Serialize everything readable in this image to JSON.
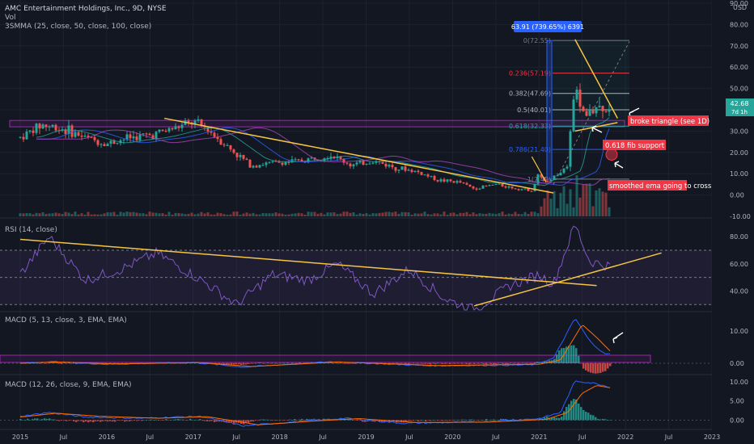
{
  "colors": {
    "background": "#131722",
    "grid": "#1e222d",
    "separator": "#2a2e39",
    "text": "#b2b5be",
    "bull": "#26a69a",
    "bear": "#ef5350",
    "trendline": "#f5c542",
    "rsi_line": "#7e57c2",
    "rsi_band": "#7e57c2",
    "macd_line": "#2962ff",
    "signal_line": "#ff6d00",
    "fib_red": "#f23645",
    "fib_blue": "#2962ff",
    "zone_border": "#9c27b0",
    "annotation_bg": "#f23645"
  },
  "header": {
    "symbol_line": "AMC Entertainment Holdings, Inc., 9D, NYSE",
    "vol_label": "Vol",
    "smma_label": "3SMMA (25, close, 50, close, 100, close)"
  },
  "price_badge": {
    "price": "42.68",
    "countdown": "7d 1h"
  },
  "measure_label": "63.91 (739.65%) 6391",
  "annotations": {
    "broke_triangle": "broke triangle (see 1D)",
    "fib_support": "0.618 fib support",
    "ema_cross": "smoothed ema going to cross"
  },
  "fib_levels": [
    {
      "label": "0(72.55)",
      "value": 72.55,
      "color": "#787b86"
    },
    {
      "label": "0.236(57.19)",
      "value": 57.19,
      "color": "#f23645"
    },
    {
      "label": "0.382(47.69)",
      "value": 47.69,
      "color": "#b2b5be"
    },
    {
      "label": "0.5(40.01)",
      "value": 40.01,
      "color": "#b2b5be"
    },
    {
      "label": "0.618(32.33)",
      "value": 32.33,
      "color": "#26a69a"
    },
    {
      "label": "0.786(21.40)",
      "value": 21.4,
      "color": "#2962ff"
    },
    {
      "label": "1(7.47)",
      "value": 7.47,
      "color": "#787b86"
    }
  ],
  "panes": {
    "rsi_label": "RSI (14, close)",
    "macd1_label": "MACD (5, 13, close, 3, EMA, EMA)",
    "macd2_label": "MACD (12, 26, close, 9, EMA, EMA)"
  },
  "chart_data": {
    "type": "candlestick",
    "title": "AMC Entertainment Holdings, Inc., 9D, NYSE",
    "price_axis": {
      "ticks": [
        "90.00",
        "80.00",
        "70.00",
        "60.00",
        "50.00",
        "40.00",
        "30.00",
        "20.00",
        "10.00",
        "0.00",
        "-10.00"
      ],
      "unit": "USD",
      "ylim": [
        -10,
        90
      ]
    },
    "x_axis": {
      "ticks": [
        "2015",
        "Jul",
        "2016",
        "Jul",
        "2017",
        "Jul",
        "2018",
        "Jul",
        "2019",
        "Jul",
        "2020",
        "Jul",
        "2021",
        "Jul",
        "2022",
        "Jul",
        "2023"
      ],
      "range": [
        "2015-01",
        "2023-02"
      ]
    },
    "price_anchors": [
      [
        "2015-01",
        27
      ],
      [
        "2015-04",
        33
      ],
      [
        "2015-07",
        31
      ],
      [
        "2015-10",
        27
      ],
      [
        "2016-01",
        24
      ],
      [
        "2016-04",
        27
      ],
      [
        "2016-07",
        28
      ],
      [
        "2016-10",
        31
      ],
      [
        "2017-01",
        34
      ],
      [
        "2017-03",
        31
      ],
      [
        "2017-06",
        22
      ],
      [
        "2017-09",
        14
      ],
      [
        "2017-12",
        15
      ],
      [
        "2018-04",
        16
      ],
      [
        "2018-08",
        19
      ],
      [
        "2018-11",
        14
      ],
      [
        "2019-02",
        16
      ],
      [
        "2019-05",
        13
      ],
      [
        "2019-08",
        11
      ],
      [
        "2019-11",
        7
      ],
      [
        "2020-02",
        6
      ],
      [
        "2020-04",
        3
      ],
      [
        "2020-07",
        5
      ],
      [
        "2020-10",
        3
      ],
      [
        "2020-12",
        2.2
      ],
      [
        "2021-01",
        10
      ],
      [
        "2021-02",
        6
      ],
      [
        "2021-04",
        11
      ],
      [
        "2021-05",
        13
      ],
      [
        "2021-06",
        55
      ],
      [
        "2021-07",
        38
      ],
      [
        "2021-08",
        37
      ],
      [
        "2021-09",
        43
      ],
      [
        "2021-10",
        39
      ],
      [
        "2021-11",
        42.68
      ]
    ],
    "horizontal_zone": {
      "from": 32,
      "to": 35
    },
    "downtrend_line": {
      "from": [
        "2016-09",
        36
      ],
      "to": [
        "2021-03",
        1
      ]
    },
    "triangle": {
      "upper": [
        [
          "2021-06",
          73
        ],
        [
          "2021-11",
          36
        ]
      ],
      "lower": [
        [
          "2021-06",
          30
        ],
        [
          "2021-11",
          34
        ]
      ]
    },
    "measure": {
      "from": [
        "2021-01",
        8
      ],
      "to": [
        "2021-01",
        72.55
      ]
    },
    "rsi": {
      "ticks": [
        "80.00",
        "60.00",
        "40.00"
      ],
      "ylim": [
        26,
        89
      ],
      "bands": [
        70,
        50,
        30
      ],
      "anchors": [
        [
          "2015-01",
          52
        ],
        [
          "2015-05",
          80
        ],
        [
          "2015-10",
          48
        ],
        [
          "2016-03",
          56
        ],
        [
          "2016-08",
          68
        ],
        [
          "2017-03",
          45
        ],
        [
          "2017-07",
          30
        ],
        [
          "2017-12",
          52
        ],
        [
          "2018-05",
          48
        ],
        [
          "2018-09",
          60
        ],
        [
          "2019-02",
          38
        ],
        [
          "2019-07",
          56
        ],
        [
          "2019-12",
          34
        ],
        [
          "2020-04",
          26
        ],
        [
          "2020-09",
          44
        ],
        [
          "2021-01",
          52
        ],
        [
          "2021-03",
          45
        ],
        [
          "2021-06",
          89
        ],
        [
          "2021-08",
          62
        ],
        [
          "2021-11",
          58
        ]
      ],
      "trendline_down": {
        "from": [
          "2015-01",
          78
        ],
        "to": [
          "2021-09",
          44
        ]
      },
      "trendline_up": {
        "from": [
          "2020-04",
          29
        ],
        "to": [
          "2022-06",
          68
        ]
      }
    },
    "macd_fast": {
      "ticks": [
        "10.00",
        "0.00"
      ],
      "ylim": [
        -3,
        15
      ],
      "macd_anchors": [
        [
          "2015-01",
          0
        ],
        [
          "2015-05",
          0.5
        ],
        [
          "2016-01",
          -0.3
        ],
        [
          "2017-01",
          0.3
        ],
        [
          "2017-08",
          -1.2
        ],
        [
          "2018-08",
          0.5
        ],
        [
          "2019-10",
          -0.8
        ],
        [
          "2020-12",
          -0.5
        ],
        [
          "2021-03",
          1.5
        ],
        [
          "2021-06",
          14
        ],
        [
          "2021-08",
          7
        ],
        [
          "2021-10",
          3
        ],
        [
          "2021-11",
          2.8
        ]
      ],
      "signal_anchors": [
        [
          "2015-01",
          0
        ],
        [
          "2015-06",
          0.4
        ],
        [
          "2016-02",
          -0.2
        ],
        [
          "2017-02",
          0.2
        ],
        [
          "2017-09",
          -1.0
        ],
        [
          "2018-09",
          0.4
        ],
        [
          "2019-11",
          -0.7
        ],
        [
          "2021-01",
          -0.3
        ],
        [
          "2021-04",
          1.0
        ],
        [
          "2021-07",
          12
        ],
        [
          "2021-09",
          8
        ],
        [
          "2021-11",
          3.5
        ]
      ]
    },
    "macd_slow": {
      "ticks": [
        "10.00",
        "5.00",
        "0.00"
      ],
      "ylim": [
        -2,
        11
      ],
      "macd_anchors": [
        [
          "2015-01",
          1
        ],
        [
          "2015-05",
          2
        ],
        [
          "2015-10",
          0.8
        ],
        [
          "2016-06",
          0.5
        ],
        [
          "2017-02",
          1
        ],
        [
          "2017-08",
          -1.5
        ],
        [
          "2018-04",
          -0.3
        ],
        [
          "2018-10",
          0.5
        ],
        [
          "2019-06",
          -0.8
        ],
        [
          "2020-04",
          -0.5
        ],
        [
          "2021-01",
          0.4
        ],
        [
          "2021-04",
          2
        ],
        [
          "2021-06",
          10.2
        ],
        [
          "2021-09",
          9.5
        ],
        [
          "2021-11",
          8.5
        ]
      ],
      "signal_anchors": [
        [
          "2015-01",
          0.8
        ],
        [
          "2015-06",
          1.8
        ],
        [
          "2015-12",
          1
        ],
        [
          "2016-08",
          0.5
        ],
        [
          "2017-03",
          0.9
        ],
        [
          "2017-10",
          -1.2
        ],
        [
          "2018-06",
          -0.2
        ],
        [
          "2018-12",
          0.4
        ],
        [
          "2019-08",
          -0.6
        ],
        [
          "2020-06",
          -0.5
        ],
        [
          "2021-02",
          0.2
        ],
        [
          "2021-05",
          2
        ],
        [
          "2021-07",
          7
        ],
        [
          "2021-09",
          9
        ],
        [
          "2021-11",
          8.4
        ]
      ]
    }
  }
}
